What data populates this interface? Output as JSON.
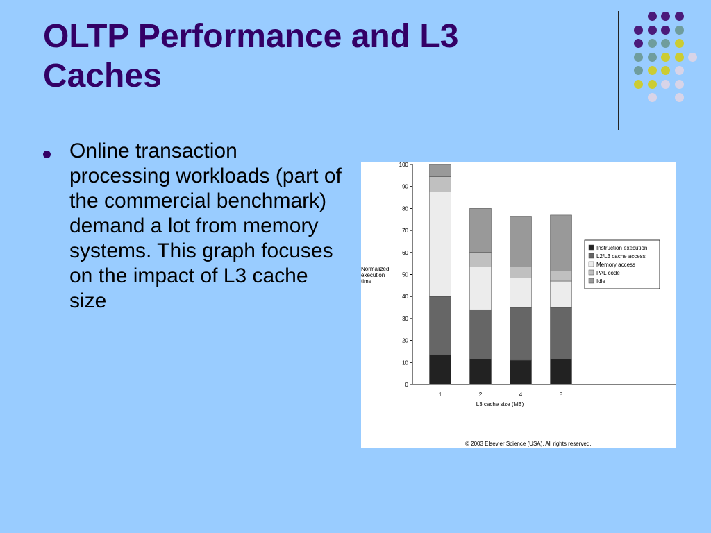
{
  "slide": {
    "title_line1": "OLTP Performance and L3",
    "title_line2": "Caches",
    "bullet_text": "Online transaction processing workloads (part of the commercial benchmark) demand a lot from memory systems.  This graph focuses on the impact of L3 cache size"
  },
  "colors": {
    "background": "#99ccff",
    "title": "#330066",
    "dot_purple": "#4b1a7a",
    "dot_teal": "#6f9d9d",
    "dot_yellow": "#cccc33",
    "dot_lavender": "#d8d4e8"
  },
  "chart_data": {
    "type": "bar",
    "stacked": true,
    "categories": [
      "1",
      "2",
      "4",
      "8"
    ],
    "xlabel": "L3 cache size (MB)",
    "ylabel": [
      "Normalized",
      "execution",
      "time"
    ],
    "ylim": [
      0,
      100
    ],
    "yticks": [
      0,
      10,
      20,
      30,
      40,
      50,
      60,
      70,
      80,
      90,
      100
    ],
    "legend_position": "right",
    "series": [
      {
        "name": "Instruction execution",
        "color": "#222222",
        "values": [
          13.5,
          11.5,
          11,
          11.5
        ]
      },
      {
        "name": "L2/L3 cache access",
        "color": "#666666",
        "values": [
          26.5,
          22.5,
          24,
          23.5
        ]
      },
      {
        "name": "Memory access",
        "color": "#ececec",
        "values": [
          47.5,
          19.5,
          13.5,
          12
        ]
      },
      {
        "name": "PAL code",
        "color": "#c0c0c0",
        "values": [
          7,
          6.5,
          5,
          4.5
        ]
      },
      {
        "name": "Idle",
        "color": "#999999",
        "values": [
          5.5,
          20,
          23,
          25.5
        ]
      }
    ],
    "copyright": "© 2003 Elsevier Science (USA). All rights reserved."
  }
}
